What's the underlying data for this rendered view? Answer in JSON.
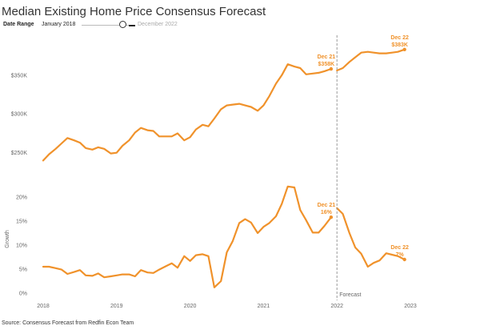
{
  "header": {
    "title": "Median Existing Home Price Consensus Forecast",
    "date_range_label": "Date Range",
    "date_range_start": "January 2018",
    "date_range_end": "December 2022"
  },
  "footer": {
    "source": "Source: Consensus Forecast from Redfin Econ Team"
  },
  "colors": {
    "line": "#f0922b",
    "forecast_line": "#999999",
    "text": "#333333"
  },
  "chart_data": [
    {
      "type": "line",
      "title": "",
      "xlabel": "",
      "ylabel": "",
      "ylim": [
        228000,
        390000
      ],
      "yticks": [
        250000,
        300000,
        350000
      ],
      "ytick_labels": [
        "$250K",
        "$300K",
        "$350K"
      ],
      "grid": false,
      "series": [
        {
          "x": [
            2018.0,
            2018.08,
            2018.17,
            2018.25,
            2018.33,
            2018.42,
            2018.5,
            2018.58,
            2018.67,
            2018.75,
            2018.83,
            2018.92,
            2019.0,
            2019.08,
            2019.17,
            2019.25,
            2019.33,
            2019.42,
            2019.5,
            2019.58,
            2019.67,
            2019.75,
            2019.83,
            2019.92,
            2020.0,
            2020.08,
            2020.17,
            2020.25,
            2020.33,
            2020.42,
            2020.5,
            2020.58,
            2020.67,
            2020.75,
            2020.83,
            2020.92,
            2021.0,
            2021.08,
            2021.17,
            2021.25,
            2021.33,
            2021.42,
            2021.5,
            2021.58,
            2021.67,
            2021.75,
            2021.83,
            2021.92
          ],
          "values": [
            240000,
            248000,
            255000,
            262000,
            269000,
            266000,
            263000,
            256000,
            254000,
            257000,
            255000,
            249000,
            250000,
            259000,
            266000,
            276000,
            282000,
            279000,
            278000,
            271000,
            271000,
            271000,
            275000,
            266000,
            270000,
            280000,
            286000,
            284000,
            294000,
            306000,
            311000,
            312000,
            313000,
            311000,
            309000,
            304000,
            311000,
            323000,
            339000,
            350000,
            364000,
            361000,
            359000,
            351000,
            352000,
            353000,
            355000,
            358000
          ]
        },
        {
          "x": [
            2022.0,
            2022.08,
            2022.17,
            2022.25,
            2022.33,
            2022.42,
            2022.5,
            2022.58,
            2022.67,
            2022.75,
            2022.83,
            2022.92
          ],
          "values": [
            356000,
            359000,
            367000,
            373000,
            379000,
            380000,
            379000,
            378000,
            378000,
            379000,
            380000,
            383000
          ]
        }
      ],
      "annotations": [
        {
          "x": 2021.92,
          "y": 358000,
          "lines": [
            "Dec 21",
            "$358K"
          ]
        },
        {
          "x": 2022.92,
          "y": 383000,
          "lines": [
            "Dec 22",
            "$383K"
          ]
        }
      ]
    },
    {
      "type": "line",
      "title": "",
      "xlabel": "",
      "ylabel": "Growth",
      "ylim": [
        -0.01,
        0.235
      ],
      "yticks": [
        0,
        0.05,
        0.1,
        0.15,
        0.2
      ],
      "ytick_labels": [
        "0%",
        "5%",
        "10%",
        "15%",
        "20%"
      ],
      "grid": false,
      "x_ticks": [
        2018,
        2019,
        2020,
        2021,
        2022,
        2023
      ],
      "x_tick_labels": [
        "2018",
        "2019",
        "2020",
        "2021",
        "2022",
        "2023"
      ],
      "forecast_x": 2022.0,
      "forecast_label": "Forecast",
      "series": [
        {
          "x": [
            2018.0,
            2018.08,
            2018.17,
            2018.25,
            2018.33,
            2018.42,
            2018.5,
            2018.58,
            2018.67,
            2018.75,
            2018.83,
            2018.92,
            2019.0,
            2019.08,
            2019.17,
            2019.25,
            2019.33,
            2019.42,
            2019.5,
            2019.58,
            2019.67,
            2019.75,
            2019.83,
            2019.92,
            2020.0,
            2020.08,
            2020.17,
            2020.25,
            2020.33,
            2020.42,
            2020.5,
            2020.58,
            2020.67,
            2020.75,
            2020.83,
            2020.92,
            2021.0,
            2021.08,
            2021.17,
            2021.25,
            2021.33,
            2021.42,
            2021.5,
            2021.58,
            2021.67,
            2021.75,
            2021.83,
            2021.92
          ],
          "values": [
            0.055,
            0.055,
            0.052,
            0.049,
            0.04,
            0.044,
            0.048,
            0.037,
            0.036,
            0.041,
            0.033,
            0.035,
            0.037,
            0.039,
            0.039,
            0.035,
            0.048,
            0.043,
            0.042,
            0.049,
            0.056,
            0.062,
            0.053,
            0.077,
            0.067,
            0.079,
            0.081,
            0.077,
            0.012,
            0.025,
            0.085,
            0.108,
            0.146,
            0.154,
            0.147,
            0.125,
            0.138,
            0.146,
            0.16,
            0.186,
            0.222,
            0.22,
            0.173,
            0.152,
            0.126,
            0.126,
            0.14,
            0.158
          ]
        },
        {
          "x": [
            2022.0,
            2022.08,
            2022.17,
            2022.25,
            2022.33,
            2022.42,
            2022.5,
            2022.58,
            2022.67,
            2022.75,
            2022.83,
            2022.92
          ],
          "values": [
            0.177,
            0.165,
            0.125,
            0.095,
            0.082,
            0.055,
            0.063,
            0.068,
            0.083,
            0.08,
            0.077,
            0.07
          ]
        }
      ],
      "annotations": [
        {
          "x": 2021.92,
          "y": 0.158,
          "lines": [
            "Dec 21",
            "16%"
          ]
        },
        {
          "x": 2022.92,
          "y": 0.07,
          "lines": [
            "Dec 22",
            "7%"
          ]
        }
      ]
    }
  ]
}
